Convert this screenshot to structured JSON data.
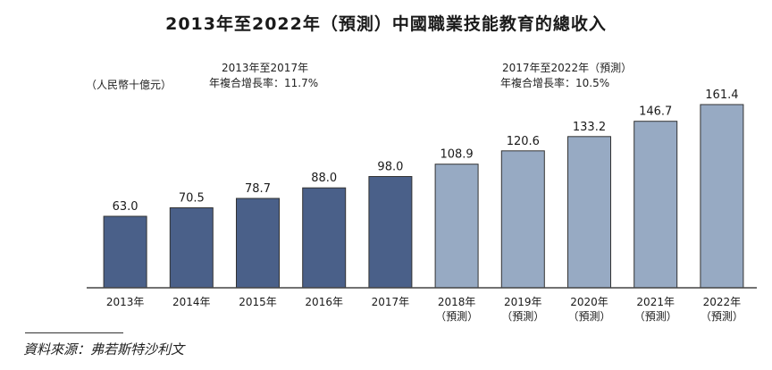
{
  "chart_data": {
    "type": "bar",
    "title": "2013年至2022年（預測）中國職業技能教育的總收入",
    "unit_label": "（人民幣十億元）",
    "categories": [
      "2013年",
      "2014年",
      "2015年",
      "2016年",
      "2017年",
      "2018年",
      "2019年",
      "2020年",
      "2021年",
      "2022年"
    ],
    "category_sublabels": [
      "",
      "",
      "",
      "",
      "",
      "（預測）",
      "（預測）",
      "（預測）",
      "（預測）",
      "（預測）"
    ],
    "values": [
      63.0,
      70.5,
      78.7,
      88.0,
      98.0,
      108.9,
      120.6,
      133.2,
      146.7,
      161.4
    ],
    "value_labels": [
      "63.0",
      "70.5",
      "78.7",
      "88.0",
      "98.0",
      "108.9",
      "120.6",
      "133.2",
      "146.7",
      "161.4"
    ],
    "historical_color": "#4a6089",
    "forecast_color": "#97aac3",
    "bar_stroke": "#333333",
    "forecast_start_index": 5,
    "ylim": [
      0,
      170
    ],
    "xlabel": "",
    "ylabel": "",
    "grid": false,
    "cagr_annotations": [
      {
        "line1": "2013年至2017年",
        "line2": "年複合增長率：11.7%"
      },
      {
        "line1": "2017年至2022年（預測）",
        "line2": "年複合增長率：10.5%"
      }
    ]
  },
  "source": "資料來源：弗若斯特沙利文"
}
